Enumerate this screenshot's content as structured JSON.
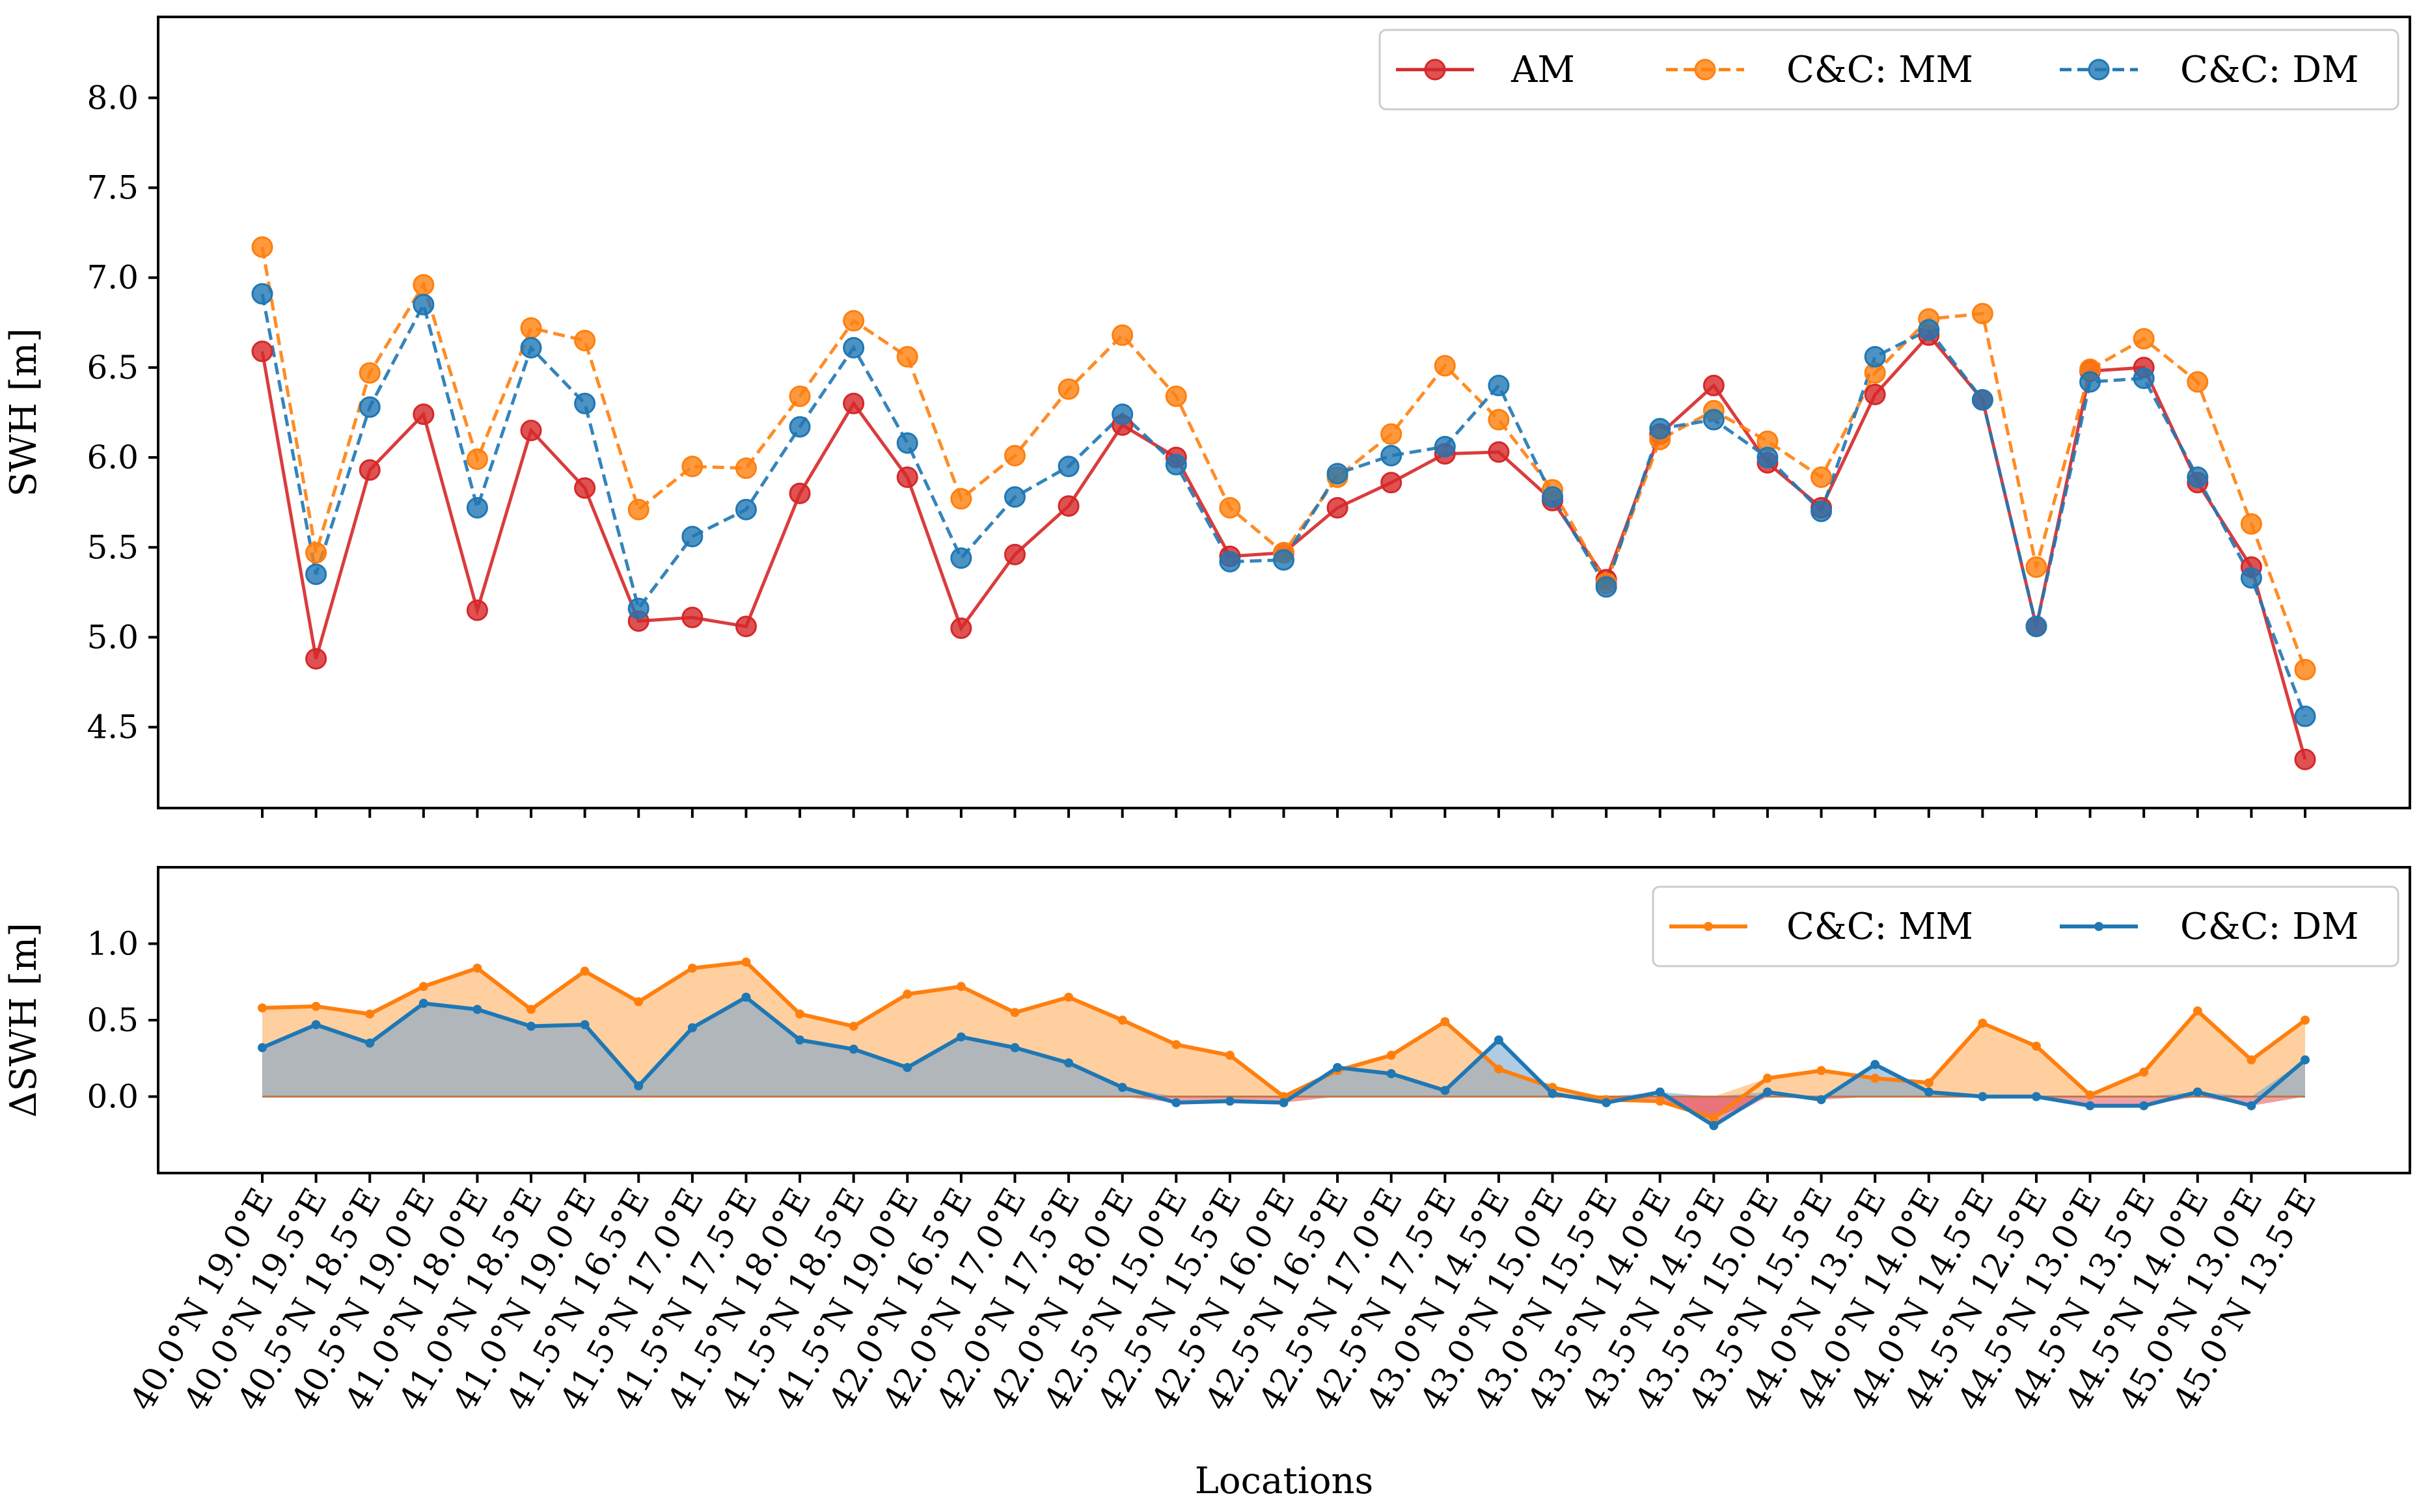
{
  "colors": {
    "am": "#d62728",
    "mm": "#ff7f0e",
    "dm": "#1f77b4",
    "fill_mm": "#ffbb78",
    "fill_dm": "#6fa3cf",
    "fill_neg": "#e3505a"
  },
  "chart_data": [
    {
      "type": "line",
      "panel": "top",
      "ylabel": "SWH [m]",
      "ylim": [
        4.05,
        8.45
      ],
      "yticks": [
        "4.5",
        "5.0",
        "5.5",
        "6.0",
        "6.5",
        "7.0",
        "7.5",
        "8.0"
      ],
      "legend": {
        "position": "top-right",
        "entries": [
          "AM",
          "C&C: MM",
          "C&C: DM"
        ]
      },
      "series": [
        {
          "name": "AM",
          "style": "solid",
          "color_key": "am",
          "values": [
            6.59,
            4.88,
            5.93,
            6.24,
            5.15,
            6.15,
            5.83,
            5.09,
            5.11,
            5.06,
            5.8,
            6.3,
            5.89,
            5.05,
            5.46,
            5.73,
            6.18,
            6.0,
            5.45,
            5.47,
            5.72,
            5.86,
            6.02,
            6.03,
            5.76,
            5.32,
            6.13,
            6.4,
            5.97,
            5.72,
            6.35,
            6.68,
            6.32,
            5.06,
            6.48,
            6.5,
            5.86,
            5.39,
            4.32
          ]
        },
        {
          "name": "C&C: MM",
          "style": "dashed",
          "color_key": "mm",
          "values": [
            7.17,
            5.47,
            6.47,
            6.96,
            5.99,
            6.72,
            6.65,
            5.71,
            5.95,
            5.94,
            6.34,
            6.76,
            6.56,
            5.77,
            6.01,
            6.38,
            6.68,
            6.34,
            5.72,
            5.47,
            5.89,
            6.13,
            6.51,
            6.21,
            5.82,
            5.3,
            6.1,
            6.26,
            6.09,
            5.89,
            6.47,
            6.77,
            6.8,
            5.39,
            6.49,
            6.66,
            6.42,
            5.63,
            4.82
          ]
        },
        {
          "name": "C&C: DM",
          "style": "dashed",
          "color_key": "dm",
          "values": [
            6.91,
            5.35,
            6.28,
            6.85,
            5.72,
            6.61,
            6.3,
            5.16,
            5.56,
            5.71,
            6.17,
            6.61,
            6.08,
            5.44,
            5.78,
            5.95,
            6.24,
            5.96,
            5.42,
            5.43,
            5.91,
            6.01,
            6.06,
            6.4,
            5.78,
            5.28,
            6.16,
            6.21,
            6.0,
            5.7,
            6.56,
            6.71,
            6.32,
            5.06,
            6.42,
            6.44,
            5.89,
            5.33,
            4.56
          ]
        }
      ]
    },
    {
      "type": "area",
      "panel": "bottom",
      "ylabel": "ΔSWH [m]",
      "xlabel": "Locations",
      "ylim": [
        -0.5,
        1.5
      ],
      "yticks": [
        "0.0",
        "0.5",
        "1.0"
      ],
      "legend": {
        "position": "top-right",
        "entries": [
          "C&C: MM",
          "C&C: DM"
        ]
      },
      "categories": [
        "40.0°N 19.0°E",
        "40.0°N 19.5°E",
        "40.5°N 18.5°E",
        "40.5°N 19.0°E",
        "41.0°N 18.0°E",
        "41.0°N 18.5°E",
        "41.0°N 19.0°E",
        "41.5°N 16.5°E",
        "41.5°N 17.0°E",
        "41.5°N 17.5°E",
        "41.5°N 18.0°E",
        "41.5°N 18.5°E",
        "41.5°N 19.0°E",
        "42.0°N 16.5°E",
        "42.0°N 17.0°E",
        "42.0°N 17.5°E",
        "42.0°N 18.0°E",
        "42.5°N 15.0°E",
        "42.5°N 15.5°E",
        "42.5°N 16.0°E",
        "42.5°N 16.5°E",
        "42.5°N 17.0°E",
        "42.5°N 17.5°E",
        "43.0°N 14.5°E",
        "43.0°N 15.0°E",
        "43.0°N 15.5°E",
        "43.5°N 14.0°E",
        "43.5°N 14.5°E",
        "43.5°N 15.0°E",
        "43.5°N 15.5°E",
        "44.0°N 13.5°E",
        "44.0°N 14.0°E",
        "44.0°N 14.5°E",
        "44.5°N 12.5°E",
        "44.5°N 13.0°E",
        "44.5°N 13.5°E",
        "44.5°N 14.0°E",
        "45.0°N 13.0°E",
        "45.0°N 13.5°E"
      ],
      "series": [
        {
          "name": "C&C: MM",
          "color_key": "mm",
          "values": [
            0.58,
            0.59,
            0.54,
            0.72,
            0.84,
            0.57,
            0.82,
            0.62,
            0.84,
            0.88,
            0.54,
            0.46,
            0.67,
            0.72,
            0.55,
            0.65,
            0.5,
            0.34,
            0.27,
            0.0,
            0.17,
            0.27,
            0.49,
            0.18,
            0.06,
            -0.02,
            -0.03,
            -0.14,
            0.12,
            0.17,
            0.12,
            0.09,
            0.48,
            0.33,
            0.01,
            0.16,
            0.56,
            0.24,
            0.5
          ]
        },
        {
          "name": "C&C: DM",
          "color_key": "dm",
          "values": [
            0.32,
            0.47,
            0.35,
            0.61,
            0.57,
            0.46,
            0.47,
            0.07,
            0.45,
            0.65,
            0.37,
            0.31,
            0.19,
            0.39,
            0.32,
            0.22,
            0.06,
            -0.04,
            -0.03,
            -0.04,
            0.19,
            0.15,
            0.04,
            0.37,
            0.02,
            -0.04,
            0.03,
            -0.19,
            0.03,
            -0.02,
            0.21,
            0.03,
            0.0,
            0.0,
            -0.06,
            -0.06,
            0.03,
            -0.06,
            0.24
          ]
        }
      ]
    }
  ]
}
